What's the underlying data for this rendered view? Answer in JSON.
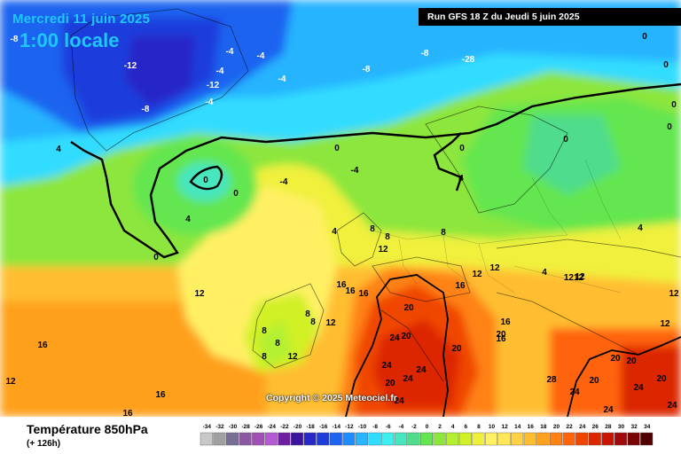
{
  "header": {
    "date": "Mercredi 11 juin 2025",
    "time": "1:00 locale",
    "run": "Run GFS 18 Z du Jeudi 5 juin 2025"
  },
  "map": {
    "copyright": "Copyright © 2025 Meteociel.fr",
    "isotherm_labels": [
      "-8",
      "-12",
      "-4",
      "-4",
      "-4",
      "-12",
      "-4",
      "-8",
      "-4",
      "-8",
      "-8",
      "-28",
      "0",
      "0",
      "0",
      "0",
      "0",
      "0",
      "0",
      "4",
      "0",
      "0",
      "4",
      "4",
      "0",
      "-4",
      "-4",
      "4",
      "4",
      "8",
      "8",
      "8",
      "12",
      "12",
      "4",
      "12",
      "12",
      "16",
      "16",
      "16",
      "16",
      "16",
      "16",
      "12",
      "12",
      "1212",
      "16",
      "12",
      "16",
      "16",
      "8",
      "8",
      "8",
      "8",
      "8",
      "12",
      "12",
      "12",
      "20",
      "20",
      "24",
      "20",
      "24",
      "24",
      "20",
      "24",
      "24",
      "24",
      "24",
      "20",
      "20",
      "20",
      "20",
      "24",
      "24",
      "28",
      "20",
      "20",
      "16"
    ]
  },
  "footer": {
    "parameter": "Température 850hPa",
    "lead": "(+ 126h)"
  },
  "legend": {
    "values": [
      "-34",
      "-32",
      "-30",
      "-28",
      "-26",
      "-24",
      "-22",
      "-20",
      "-18",
      "-16",
      "-14",
      "-12",
      "-10",
      "-8",
      "-6",
      "-4",
      "-2",
      "0",
      "2",
      "4",
      "6",
      "8",
      "10",
      "12",
      "14",
      "16",
      "18",
      "20",
      "22",
      "24",
      "26",
      "28",
      "30",
      "32",
      "34"
    ],
    "colors": [
      "#c8c8c8",
      "#a0a0a0",
      "#786e96",
      "#8c5aa0",
      "#a050b4",
      "#b45ad2",
      "#6e1ea0",
      "#3c14a0",
      "#2828c8",
      "#1e3cdc",
      "#1e64f0",
      "#1e8cff",
      "#28b4ff",
      "#32dcff",
      "#3cf0f0",
      "#46e6be",
      "#50dc8c",
      "#64e650",
      "#8ce63c",
      "#b4f032",
      "#d2f028",
      "#f0f03c",
      "#fff064",
      "#ffe65a",
      "#ffd246",
      "#ffbe32",
      "#ffa01e",
      "#ff8214",
      "#ff640a",
      "#f04600",
      "#dc2800",
      "#c81400",
      "#a00a0a",
      "#780505",
      "#500000"
    ]
  }
}
